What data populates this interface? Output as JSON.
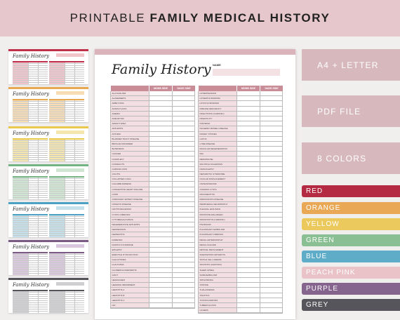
{
  "banner": {
    "prefix": "PRINTABLE ",
    "bold": "FAMILY MEDICAL HISTORY"
  },
  "thumbnails": [
    {
      "accent": "#c0304a",
      "light": "#f1c4cb"
    },
    {
      "accent": "#e7a94f",
      "light": "#f7dcb4"
    },
    {
      "accent": "#e8c94e",
      "light": "#f5e6ad"
    },
    {
      "accent": "#74b383",
      "light": "#cfe6d3"
    },
    {
      "accent": "#4aa1c3",
      "light": "#c3e0eb"
    },
    {
      "accent": "#7c5a86",
      "light": "#d9c7de"
    },
    {
      "accent": "#55545a",
      "light": "#cfcfd2"
    }
  ],
  "doc": {
    "title": "Family History",
    "name_label": "NAME",
    "col_mom": "MOMS SIDE",
    "col_dad": "DADS SIDE",
    "left_rows": [
      "ALCOHOLISM",
      "ALZHEIMER'S",
      "AMBLYOPIA",
      "ANAPHYLAXIS",
      "ANEMIA",
      "ANEURYSM",
      "ARRHYTHMIA",
      "ARTHRITIS",
      "ASTHMA",
      "BLADDER TRACT DISEASE",
      "BIPOLAR DISORDER",
      "BLINDNESS",
      "CANCER",
      "CATAPLEXY",
      "CATARACTS",
      "CHRONIC PAIN",
      "COLITIS",
      "COLLAPSED LUNG",
      "COLORBLINDNESS",
      "CONGESTIVE HEART FAILURE",
      "COPD",
      "CORONARY ARTERY DISEASE",
      "CROHN'S DISEASE",
      "CRYPTORCHIDISM",
      "CYSTIC FIBROSIS",
      "CYTOMEGALOVIRUS",
      "DEGENERATIVE ARTHRITIS",
      "DEPRESSION",
      "DERMATITIS",
      "DIABETES",
      "DOWN'S SYNDROME",
      "EPILEPSY",
      "ERECTILE DYSFUNCTION",
      "GALLSTONES",
      "GLAUCOMA",
      "GLOMERULONEPHRITIS",
      "GOUT",
      "HEADACHES",
      "HEARING IMPAIRMENT",
      "HEPATITIS A",
      "HEPATITIS B",
      "HEPATITIS C",
      "HIV"
    ],
    "right_rows": [
      "HYPERTENSION",
      "HYPERTHYROIDISM",
      "HYPOTHYROIDISM",
      "IMMUNE DEFICIENCY",
      "INFECTIONS (CHRONIC)",
      "INFERTILITY",
      "INSOMNIA",
      "ISCHEMIC BOWEL DISEASE",
      "KIDNEY STONES",
      "LUPUS",
      "LYME DISEASE",
      "MACULAR DEGENERATION",
      "MAI",
      "MENOPAUSE",
      "MULTIPLE SCLEROSIS",
      "NARCOLEPSY",
      "NEPHROTIC SYNDROME",
      "OCULAR DISPLACEMENT",
      "OSTEOPOROSIS",
      "OVARIAN CYSTS",
      "PANCREATITIS",
      "PARKINSON'S DISEASE",
      "PERIPHERAL NEUROPATHY",
      "PLEURAL EFFUSION",
      "PROSTATE ENLARGED",
      "PROSTATITIS (CHRONIC)",
      "PSORIASIS",
      "PULMONARY EMBOLISM",
      "PULMONARY FIBROSIS",
      "RENAL ARTERIOPATHY",
      "RENAL FAILURE",
      "RETINAL DETACHMENT",
      "RHEUMATOID ARTHRITIS",
      "SICKLE CELL ANEMIA",
      "SINUSITIS (CHRONIC)",
      "SLEEP APNEA",
      "SOMNAMBULISM",
      "SPINA BIFIDA",
      "STROKE",
      "THALASSEMIA",
      "TINNITUS",
      "TOXOPLASMOSIS",
      "TUBERCULOSIS",
      "ULCERS"
    ]
  },
  "info": [
    {
      "label": "A4 + LETTER"
    },
    {
      "label": "PDF FILE"
    },
    {
      "label": "8 COLORS"
    }
  ],
  "colors": [
    {
      "label": "RED",
      "hex": "#b52a43"
    },
    {
      "label": "ORANGE",
      "hex": "#e9a856"
    },
    {
      "label": "YELLOW",
      "hex": "#ecc95d"
    },
    {
      "label": "GREEN",
      "hex": "#89bf92"
    },
    {
      "label": "BLUE",
      "hex": "#5eacc8"
    },
    {
      "label": "PEACH PINK",
      "hex": "#e9c3c7"
    },
    {
      "label": "PURPLE",
      "hex": "#85648e"
    },
    {
      "label": "GREY",
      "hex": "#56555b"
    }
  ]
}
